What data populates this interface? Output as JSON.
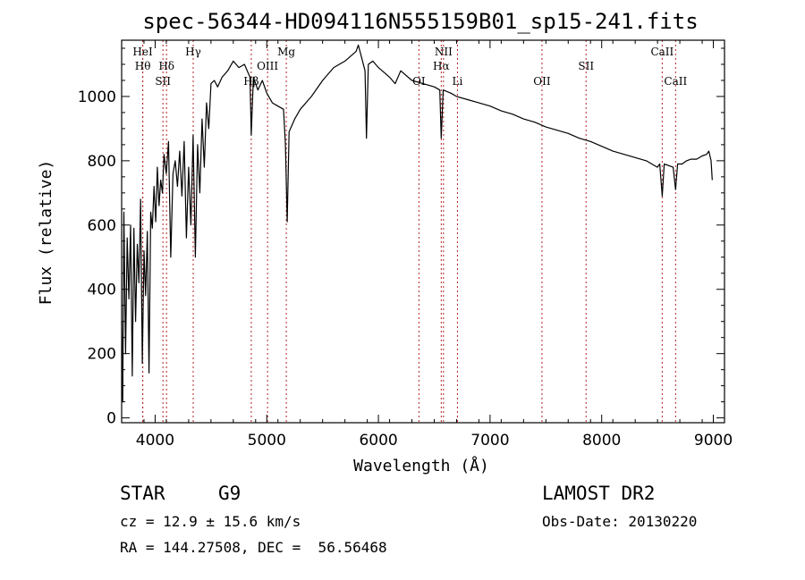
{
  "chart_data": {
    "type": "line",
    "title": "spec-56344-HD094116N555159B01_sp15-241.fits",
    "xlabel": "Wavelength (Å)",
    "ylabel": "Flux (relative)",
    "xlim": [
      3700,
      9100
    ],
    "ylim": [
      -15,
      1175
    ],
    "xticks": [
      4000,
      5000,
      6000,
      7000,
      8000,
      9000
    ],
    "yticks": [
      0,
      200,
      400,
      600,
      800,
      1000
    ],
    "series": [
      {
        "x": [
          3700,
          3710,
          3720,
          3735,
          3750,
          3765,
          3780,
          3795,
          3810,
          3825,
          3840,
          3855,
          3870,
          3885,
          3900,
          3915,
          3930,
          3945,
          3960,
          3975,
          3990,
          4005,
          4020,
          4035,
          4050,
          4065,
          4080,
          4100,
          4120,
          4140,
          4160,
          4180,
          4200,
          4220,
          4240,
          4260,
          4280,
          4300,
          4320,
          4340,
          4360,
          4380,
          4400,
          4420,
          4440,
          4460,
          4480,
          4500,
          4530,
          4560,
          4600,
          4650,
          4700,
          4750,
          4800,
          4850,
          4861,
          4880,
          4920,
          4960,
          5000,
          5050,
          5100,
          5150,
          5167,
          5183,
          5200,
          5250,
          5300,
          5400,
          5500,
          5600,
          5700,
          5800,
          5820,
          5850,
          5880,
          5893,
          5910,
          5950,
          6000,
          6100,
          6150,
          6200,
          6300,
          6400,
          6500,
          6550,
          6563,
          6580,
          6650,
          6700,
          6800,
          6900,
          7000,
          7100,
          7200,
          7300,
          7400,
          7500,
          7600,
          7700,
          7800,
          7900,
          8000,
          8100,
          8200,
          8300,
          8400,
          8498,
          8520,
          8542,
          8560,
          8600,
          8640,
          8662,
          8680,
          8720,
          8760,
          8800,
          8850,
          8900,
          8940,
          8960,
          8980,
          8990
        ],
        "y": [
          300,
          50,
          640,
          200,
          560,
          370,
          600,
          130,
          590,
          300,
          540,
          420,
          680,
          170,
          520,
          380,
          580,
          140,
          640,
          590,
          720,
          610,
          780,
          660,
          740,
          700,
          820,
          760,
          860,
          500,
          760,
          800,
          720,
          830,
          690,
          860,
          560,
          780,
          600,
          880,
          500,
          850,
          700,
          930,
          780,
          980,
          900,
          1040,
          1050,
          1030,
          1060,
          1080,
          1110,
          1090,
          1100,
          1060,
          880,
          1060,
          1020,
          1050,
          1010,
          980,
          970,
          960,
          850,
          610,
          890,
          930,
          960,
          1000,
          1050,
          1090,
          1110,
          1140,
          1160,
          1120,
          1080,
          870,
          1100,
          1110,
          1090,
          1060,
          1040,
          1080,
          1050,
          1040,
          1030,
          1020,
          870,
          1020,
          1010,
          1000,
          990,
          980,
          970,
          955,
          945,
          930,
          920,
          905,
          895,
          885,
          870,
          860,
          845,
          830,
          820,
          810,
          800,
          780,
          790,
          690,
          790,
          785,
          780,
          710,
          790,
          790,
          800,
          805,
          805,
          815,
          820,
          830,
          800,
          740
        ]
      }
    ],
    "lines": [
      {
        "w": 3889,
        "label": "HeI",
        "row": 1
      },
      {
        "w": 3889,
        "label": "Hθ",
        "row": 2
      },
      {
        "w": 4070,
        "label": "SII",
        "row": 3
      },
      {
        "w": 4102,
        "label": "Hδ",
        "row": 2
      },
      {
        "w": 4341,
        "label": "Hγ",
        "row": 1
      },
      {
        "w": 4861,
        "label": "Hβ",
        "row": 3
      },
      {
        "w": 5007,
        "label": "OIII",
        "row": 2
      },
      {
        "w": 5175,
        "label": "Mg",
        "row": 1
      },
      {
        "w": 6363,
        "label": "OI",
        "row": 3
      },
      {
        "w": 6563,
        "label": "Hα",
        "row": 2
      },
      {
        "w": 6583,
        "label": "NII",
        "row": 1
      },
      {
        "w": 6708,
        "label": "Li",
        "row": 3
      },
      {
        "w": 7465,
        "label": "OII",
        "row": 3
      },
      {
        "w": 7860,
        "label": "SII",
        "row": 2
      },
      {
        "w": 8542,
        "label": "CaII",
        "row": 1
      },
      {
        "w": 8662,
        "label": "CaII",
        "row": 3
      }
    ]
  },
  "info": {
    "class_label": "STAR",
    "subclass": "G9",
    "survey": "LAMOST DR2",
    "cz": "cz = 12.9 ± 15.6 km/s",
    "obs_date": "Obs-Date: 20130220",
    "coords": "RA = 144.27508, DEC =  56.56468"
  },
  "colors": {
    "spectrum": "#000000",
    "marker_lines": "#b22222"
  }
}
